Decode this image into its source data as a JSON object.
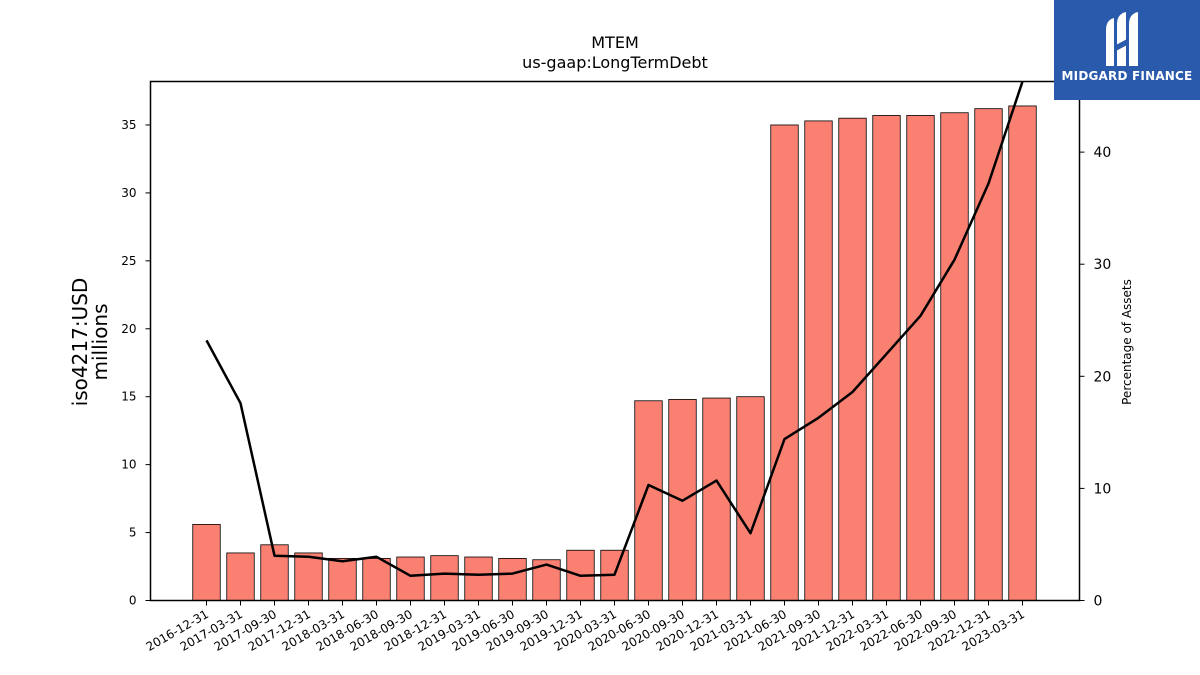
{
  "logo": {
    "text": "MIDGARD FINANCE",
    "icon": "midgard-logo-icon",
    "color": "#2a5aab"
  },
  "chart_data": {
    "type": "bar",
    "title": "MTEM",
    "subtitle": "us-gaap:LongTermDebt",
    "ylabel": "iso4217:USD",
    "ylabel_line2": "millions",
    "ylabel_right": "Percentage of Assets",
    "ylim": [
      0,
      38.2
    ],
    "ylim_right": [
      0,
      46.3
    ],
    "yticks": [
      0,
      5,
      10,
      15,
      20,
      25,
      30,
      35
    ],
    "yticks_right": [
      0,
      10,
      20,
      30,
      40
    ],
    "bar_color": "#fa8072",
    "line_color": "#000000",
    "grid": false,
    "categories": [
      "2016-12-31",
      "2017-03-31",
      "2017-09-30",
      "2017-12-31",
      "2018-03-31",
      "2018-06-30",
      "2018-09-30",
      "2018-12-31",
      "2019-03-31",
      "2019-06-30",
      "2019-09-30",
      "2019-12-31",
      "2020-03-31",
      "2020-06-30",
      "2020-09-30",
      "2020-12-31",
      "2021-03-31",
      "2021-06-30",
      "2021-09-30",
      "2021-12-31",
      "2022-03-31",
      "2022-06-30",
      "2022-09-30",
      "2022-12-31",
      "2023-03-31"
    ],
    "series": [
      {
        "values": [
          5.6,
          3.5,
          4.1,
          3.5,
          3.1,
          3.1,
          3.2,
          3.3,
          3.2,
          3.1,
          3.0,
          3.7,
          3.7,
          14.7,
          14.8,
          14.9,
          15.0,
          35.0,
          35.3,
          35.5,
          35.7,
          35.7,
          35.9,
          36.2,
          36.4
        ]
      },
      {
        "axis": "right",
        "values": [
          23.2,
          17.6,
          4.0,
          3.9,
          3.5,
          3.9,
          2.2,
          2.4,
          2.3,
          2.4,
          3.2,
          2.2,
          2.3,
          10.3,
          8.9,
          10.7,
          6.0,
          14.4,
          16.3,
          18.6,
          22.0,
          25.4,
          30.4,
          37.2,
          46.3
        ]
      }
    ]
  }
}
